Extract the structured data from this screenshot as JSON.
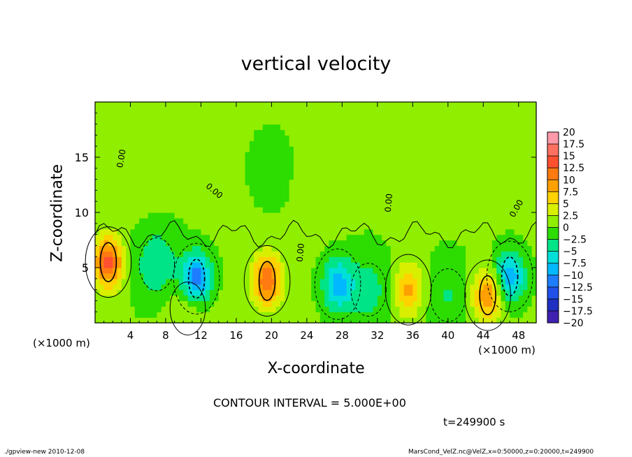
{
  "title": "vertical velocity",
  "contour_interval": "CONTOUR INTERVAL = 5.000E+00",
  "time_label": "t=249900 s",
  "footer_left": "./gpview-new  2010-12-08",
  "footer_right": "MarsCond_VelZ.nc@VelZ,x=0:50000,z=0:20000,t=249900",
  "chart_data": {
    "type": "heatmap",
    "title": "vertical velocity",
    "xlabel": "X-coordinate",
    "ylabel": "Z-coordinate",
    "x_unit_left": "(×1000 m)",
    "x_unit_right": "(×1000 m)",
    "xlim": [
      0,
      50
    ],
    "ylim": [
      0,
      20
    ],
    "x_ticks": [
      4,
      8,
      12,
      16,
      20,
      24,
      28,
      32,
      36,
      40,
      44,
      48
    ],
    "y_ticks": [
      5,
      10,
      15
    ],
    "contour_label": "0.00",
    "colorbar": {
      "levels": [
        "20",
        "17.5",
        "15",
        "12.5",
        "10",
        "7.5",
        "5",
        "2.5",
        "0",
        "−2.5",
        "−5",
        "−7.5",
        "−10",
        "−12.5",
        "−15",
        "−17.5",
        "−20"
      ],
      "colors": [
        "#ff9aa8",
        "#ff7060",
        "#ff5030",
        "#ff7a10",
        "#ffa000",
        "#ffd200",
        "#d8f000",
        "#90ee00",
        "#2ddc00",
        "#00e488",
        "#00e0d8",
        "#00b8ff",
        "#1e7dff",
        "#2050e8",
        "#2030c0",
        "#4020b0",
        "#7810c0"
      ]
    },
    "features": [
      {
        "x": 1.5,
        "z": 5.5,
        "w": 13
      },
      {
        "x": 7,
        "z": 5.3,
        "w": -5
      },
      {
        "x": 11.5,
        "z": 4.0,
        "w": -13
      },
      {
        "x": 19.5,
        "z": 3.8,
        "w": 12
      },
      {
        "x": 27.5,
        "z": 3.5,
        "w": -9
      },
      {
        "x": 31,
        "z": 3.0,
        "w": -4
      },
      {
        "x": 35.5,
        "z": 3.0,
        "w": 8
      },
      {
        "x": 40,
        "z": 2.5,
        "w": -3
      },
      {
        "x": 44.5,
        "z": 2.5,
        "w": 10
      },
      {
        "x": 47,
        "z": 4.2,
        "w": -10
      },
      {
        "x": 10.5,
        "z": 1.3,
        "w": 3
      },
      {
        "x": 26,
        "z": 13,
        "w": 2
      },
      {
        "x": 20,
        "z": 14,
        "w": -1.5
      },
      {
        "x": 6,
        "z": 14,
        "w": 2
      },
      {
        "x": 45,
        "z": 15,
        "w": 1.5
      }
    ]
  }
}
